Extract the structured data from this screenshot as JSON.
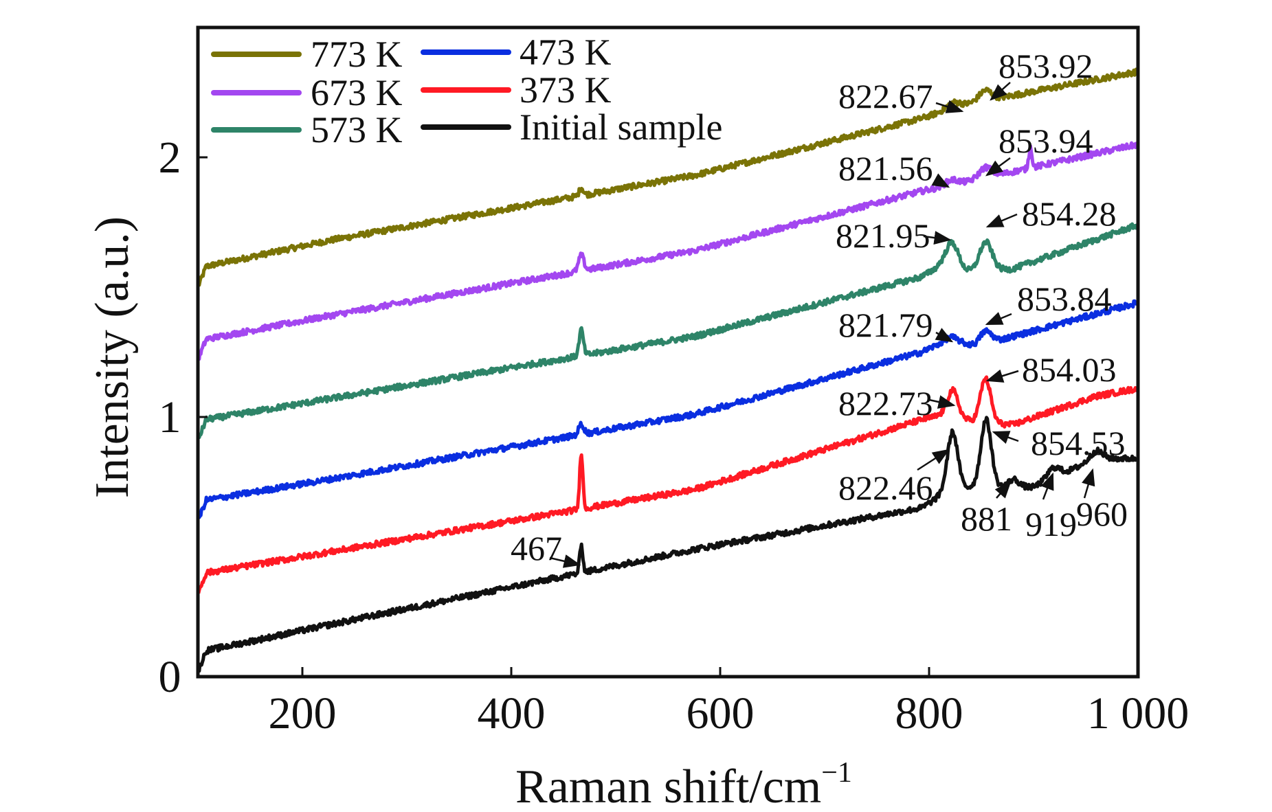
{
  "chart_data": {
    "type": "line",
    "title": "",
    "xlabel": "Raman shift/cm",
    "xlabel_superscript": "−1",
    "ylabel": "Intensity (a.u.)",
    "xlim": [
      100,
      1000
    ],
    "ylim": [
      0,
      2.5
    ],
    "x_ticks": [
      200,
      400,
      600,
      800,
      1000
    ],
    "x_tick_labels": [
      "200",
      "400",
      "600",
      "800",
      "1 000"
    ],
    "y_ticks": [
      0,
      1,
      2
    ],
    "y_tick_labels": [
      "0",
      "1",
      "2"
    ],
    "grid": false,
    "legend": {
      "placement": "top-left",
      "columns": 2,
      "entries": [
        {
          "label": "773 K",
          "series": "773K",
          "color": "#7a7306"
        },
        {
          "label": "673 K",
          "series": "673K",
          "color": "#a347f0"
        },
        {
          "label": "573 K",
          "series": "573K",
          "color": "#2e8468"
        },
        {
          "label": "473 K",
          "series": "473K",
          "color": "#0a2ee0"
        },
        {
          "label": "373 K",
          "series": "373K",
          "color": "#ff1a24"
        },
        {
          "label": "Initial sample",
          "series": "initial",
          "color": "#111111"
        }
      ]
    },
    "series": [
      {
        "name": "773 K",
        "id": "773K",
        "color": "#7a7306",
        "baseline": [
          [
            100,
            1.5
          ],
          [
            108,
            1.58
          ],
          [
            226,
            1.68
          ],
          [
            575,
            1.93
          ],
          [
            793,
            2.15
          ],
          [
            830,
            2.2
          ],
          [
            1000,
            2.33
          ]
        ],
        "peaks": [
          [
            467,
            0.03,
            2
          ],
          [
            822.67,
            0.02,
            6
          ],
          [
            853.92,
            0.04,
            6
          ]
        ]
      },
      {
        "name": "673 K",
        "id": "673K",
        "color": "#a347f0",
        "baseline": [
          [
            100,
            1.22
          ],
          [
            108,
            1.3
          ],
          [
            226,
            1.39
          ],
          [
            575,
            1.64
          ],
          [
            793,
            1.87
          ],
          [
            830,
            1.9
          ],
          [
            1000,
            2.05
          ]
        ],
        "peaks": [
          [
            467,
            0.06,
            2.5
          ],
          [
            821.56,
            0.02,
            6
          ],
          [
            853.94,
            0.04,
            6
          ],
          [
            897,
            0.08,
            1.5
          ]
        ]
      },
      {
        "name": "573 K",
        "id": "573K",
        "color": "#2e8468",
        "baseline": [
          [
            100,
            0.91
          ],
          [
            108,
            0.99
          ],
          [
            226,
            1.07
          ],
          [
            575,
            1.31
          ],
          [
            793,
            1.54
          ],
          [
            810,
            1.58
          ],
          [
            840,
            1.56
          ],
          [
            880,
            1.57
          ],
          [
            1000,
            1.74
          ]
        ],
        "peaks": [
          [
            467,
            0.1,
            2
          ],
          [
            821.95,
            0.1,
            6
          ],
          [
            854.28,
            0.11,
            6
          ]
        ]
      },
      {
        "name": "473 K",
        "id": "473K",
        "color": "#0a2ee0",
        "baseline": [
          [
            100,
            0.6
          ],
          [
            108,
            0.68
          ],
          [
            226,
            0.76
          ],
          [
            575,
            1.01
          ],
          [
            793,
            1.25
          ],
          [
            820,
            1.3
          ],
          [
            845,
            1.27
          ],
          [
            880,
            1.31
          ],
          [
            1000,
            1.44
          ]
        ],
        "peaks": [
          [
            467,
            0.04,
            2.5
          ],
          [
            821.79,
            0.01,
            6
          ],
          [
            853.84,
            0.05,
            6
          ]
        ]
      },
      {
        "name": "373 K",
        "id": "373K",
        "color": "#ff1a24",
        "baseline": [
          [
            100,
            0.32
          ],
          [
            108,
            0.4
          ],
          [
            226,
            0.48
          ],
          [
            575,
            0.72
          ],
          [
            793,
            0.99
          ],
          [
            815,
            1.01
          ],
          [
            845,
            0.98
          ],
          [
            880,
            0.97
          ],
          [
            960,
            1.08
          ],
          [
            1000,
            1.11
          ]
        ],
        "peaks": [
          [
            467,
            0.22,
            1.5
          ],
          [
            822.73,
            0.1,
            5
          ],
          [
            854.03,
            0.17,
            5
          ]
        ]
      },
      {
        "name": "Initial sample",
        "id": "initial",
        "color": "#111111",
        "baseline": [
          [
            100,
            0.02
          ],
          [
            108,
            0.1
          ],
          [
            226,
            0.2
          ],
          [
            575,
            0.49
          ],
          [
            793,
            0.65
          ],
          [
            812,
            0.7
          ],
          [
            840,
            0.73
          ],
          [
            870,
            0.73
          ],
          [
            900,
            0.73
          ],
          [
            960,
            0.84
          ],
          [
            1000,
            0.84
          ]
        ],
        "peaks": [
          [
            467,
            0.11,
            1.5
          ],
          [
            822.46,
            0.23,
            5
          ],
          [
            854.53,
            0.26,
            5
          ],
          [
            881,
            0.03,
            5
          ],
          [
            919,
            0.04,
            6
          ],
          [
            960,
            0.03,
            6
          ]
        ]
      }
    ],
    "annotations": [
      {
        "text": "822.67",
        "series": "773K",
        "x": 822.67
      },
      {
        "text": "853.92",
        "series": "773K",
        "x": 853.92
      },
      {
        "text": "821.56",
        "series": "673K",
        "x": 821.56
      },
      {
        "text": "853.94",
        "series": "673K",
        "x": 853.94
      },
      {
        "text": "821.95",
        "series": "573K",
        "x": 821.95
      },
      {
        "text": "854.28",
        "series": "573K",
        "x": 854.28
      },
      {
        "text": "821.79",
        "series": "473K",
        "x": 821.79
      },
      {
        "text": "853.84",
        "series": "473K",
        "x": 853.84
      },
      {
        "text": "822.73",
        "series": "373K",
        "x": 822.73
      },
      {
        "text": "854.03",
        "series": "373K",
        "x": 854.03
      },
      {
        "text": "822.46",
        "series": "initial",
        "x": 822.46
      },
      {
        "text": "854.53",
        "series": "initial",
        "x": 854.53
      },
      {
        "text": "881",
        "series": "initial",
        "x": 881
      },
      {
        "text": "919",
        "series": "initial",
        "x": 919
      },
      {
        "text": "960",
        "series": "initial",
        "x": 960
      },
      {
        "text": "467",
        "series": "initial",
        "x": 467
      }
    ]
  }
}
